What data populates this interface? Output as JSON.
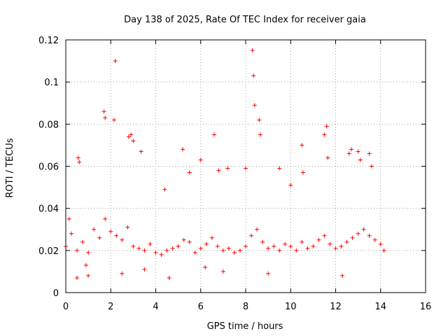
{
  "chart_data": {
    "type": "scatter",
    "title": "Day 138 of 2025, Rate Of TEC Index for receiver gaia",
    "xlabel": "GPS time / hours",
    "ylabel": "ROTI / TECUs",
    "xlim": [
      0,
      16
    ],
    "ylim": [
      0,
      0.12
    ],
    "x_ticks": [
      "0",
      "2",
      "4",
      "6",
      "8",
      "10",
      "12",
      "14",
      "16"
    ],
    "y_ticks": [
      "0",
      "0.02",
      "0.04",
      "0.06",
      "0.08",
      "0.1",
      "0.12"
    ],
    "grid": true,
    "marker": "plus",
    "color": "#ff0000",
    "series": [
      {
        "x": [
          0.0,
          0.25,
          0.5,
          0.75,
          1.0,
          1.25,
          1.5,
          1.75,
          2.0,
          2.25,
          2.5,
          2.75,
          3.0,
          3.25,
          3.5,
          3.75,
          4.0,
          4.25,
          4.5,
          4.75,
          5.0,
          5.25,
          5.5,
          5.75,
          6.0,
          6.25,
          6.5,
          6.75,
          7.0,
          7.25,
          7.5,
          7.75,
          8.0,
          8.25,
          8.5,
          8.75,
          9.0,
          9.25,
          9.5,
          9.75,
          10.0,
          10.25,
          10.5,
          10.75,
          11.0,
          11.25,
          11.5,
          11.75,
          12.0,
          12.25,
          12.5,
          12.75,
          13.0,
          13.25,
          13.5,
          13.75,
          14.0,
          14.15,
          0.15,
          0.55,
          0.6,
          1.7,
          1.75,
          2.2,
          2.15,
          2.8,
          2.9,
          3.0,
          3.35,
          4.4,
          5.2,
          5.5,
          6.0,
          6.6,
          6.8,
          7.2,
          8.0,
          8.3,
          8.35,
          8.4,
          8.6,
          8.65,
          9.5,
          10.0,
          10.5,
          10.55,
          11.5,
          11.6,
          11.65,
          12.6,
          12.7,
          13.0,
          13.1,
          13.5,
          13.6,
          0.5,
          1.0,
          2.5,
          4.6,
          7.0,
          9.0,
          12.3,
          0.9,
          3.5,
          6.2
        ],
        "y": [
          0.022,
          0.028,
          0.02,
          0.024,
          0.019,
          0.03,
          0.026,
          0.035,
          0.029,
          0.027,
          0.025,
          0.031,
          0.022,
          0.021,
          0.02,
          0.023,
          0.019,
          0.018,
          0.02,
          0.021,
          0.022,
          0.025,
          0.024,
          0.019,
          0.021,
          0.023,
          0.026,
          0.022,
          0.02,
          0.021,
          0.019,
          0.02,
          0.022,
          0.027,
          0.03,
          0.024,
          0.021,
          0.022,
          0.02,
          0.023,
          0.022,
          0.02,
          0.024,
          0.021,
          0.022,
          0.025,
          0.027,
          0.023,
          0.021,
          0.022,
          0.024,
          0.026,
          0.028,
          0.03,
          0.027,
          0.025,
          0.023,
          0.02,
          0.035,
          0.064,
          0.062,
          0.086,
          0.083,
          0.11,
          0.082,
          0.074,
          0.075,
          0.072,
          0.067,
          0.049,
          0.068,
          0.057,
          0.063,
          0.075,
          0.058,
          0.059,
          0.059,
          0.115,
          0.103,
          0.089,
          0.082,
          0.075,
          0.059,
          0.051,
          0.07,
          0.057,
          0.075,
          0.079,
          0.064,
          0.066,
          0.068,
          0.067,
          0.063,
          0.066,
          0.06,
          0.007,
          0.008,
          0.009,
          0.007,
          0.01,
          0.009,
          0.008,
          0.013,
          0.011,
          0.012
        ]
      }
    ]
  }
}
